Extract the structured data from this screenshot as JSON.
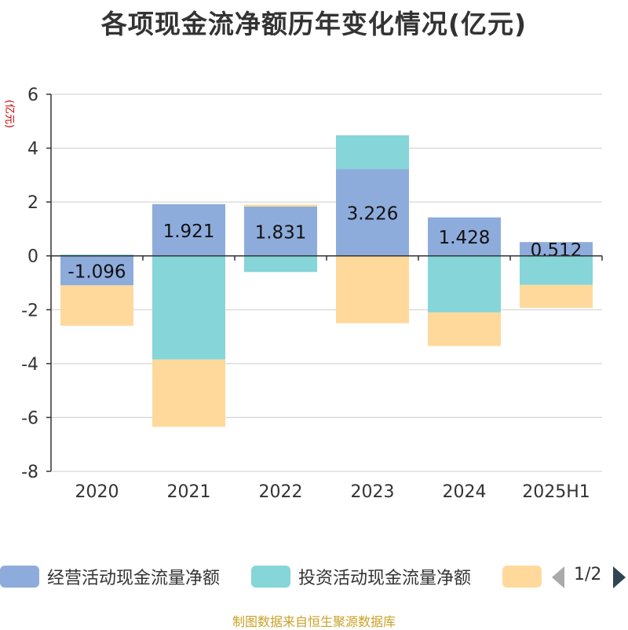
{
  "chart_data": {
    "type": "bar",
    "stacked": true,
    "title": "各项现金流净额历年变化情况(亿元)",
    "ylabel": "(亿元)",
    "ylim": [
      -8,
      6
    ],
    "yticks": [
      6,
      4,
      2,
      0,
      -2,
      -4,
      -6,
      -8
    ],
    "categories": [
      "2020",
      "2021",
      "2022",
      "2023",
      "2024",
      "2025H1"
    ],
    "grid": true,
    "series": [
      {
        "name": "经营活动现金流量净额",
        "color": "#8eacdb",
        "values": [
          -1.096,
          1.921,
          1.831,
          3.226,
          1.428,
          0.512
        ],
        "labels": [
          "-1.096",
          "1.921",
          "1.831",
          "3.226",
          "1.428",
          "0.512"
        ]
      },
      {
        "name": "投资活动现金流量净额",
        "color": "#86d5d8",
        "values": [
          0.05,
          -3.85,
          -0.6,
          1.25,
          -2.1,
          -1.08
        ]
      },
      {
        "name": "",
        "color": "#ffd99b",
        "values": [
          -1.5,
          -2.5,
          0.07,
          -2.5,
          -1.25,
          -0.85
        ]
      }
    ]
  },
  "legend": {
    "items": [
      {
        "label": "经营活动现金流量净额",
        "color": "#8eacdb"
      },
      {
        "label": "投资活动现金流量净额",
        "color": "#86d5d8"
      },
      {
        "label": "",
        "color": "#ffd99b"
      }
    ],
    "page": "1/2"
  },
  "source": "制图数据来自恒生聚源数据库"
}
